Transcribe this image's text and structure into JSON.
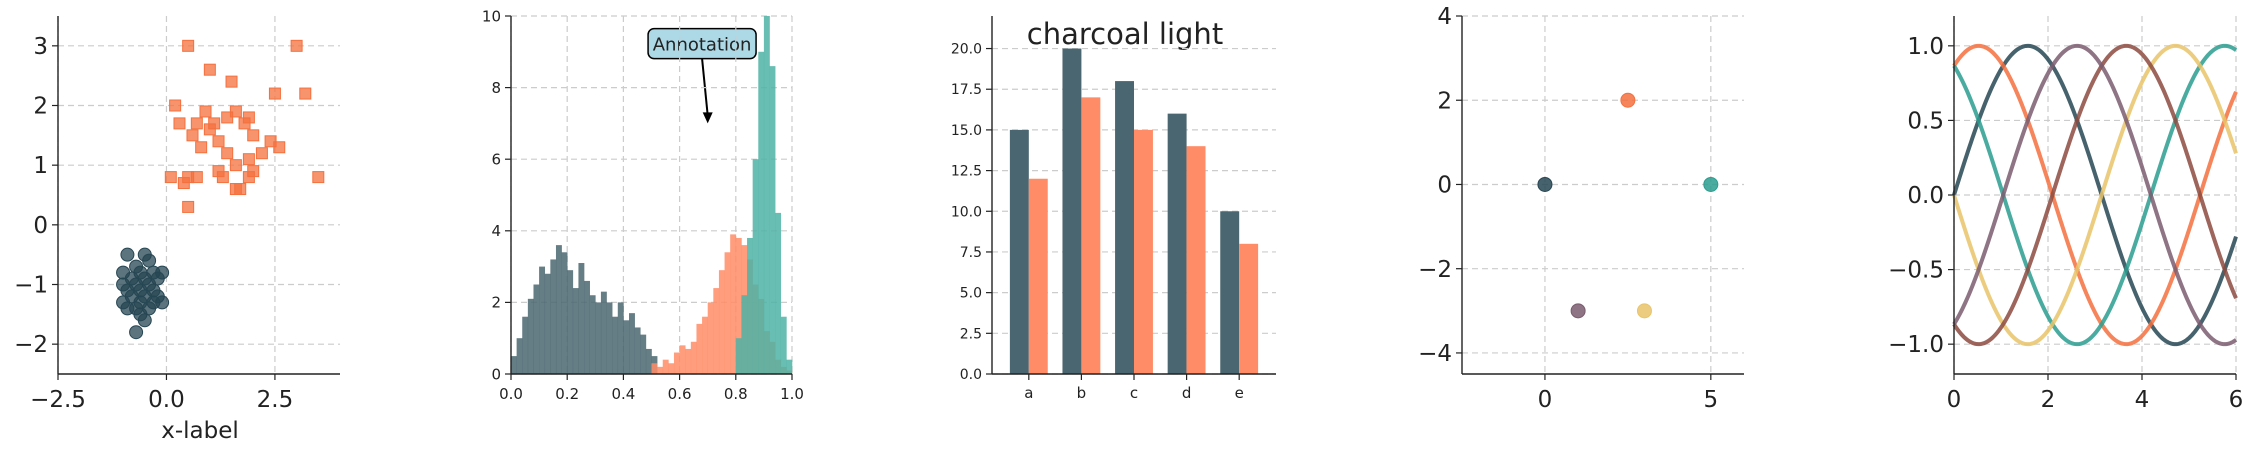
{
  "colors": {
    "charcoal": "#264653",
    "charcoal_mid": "#4a6670",
    "orange": "#f4703e",
    "orange_light": "#ff8c66",
    "teal": "#2a9d8f",
    "teal_light": "#4fb3a6",
    "sand": "#e9c46a",
    "brown": "#8c4a3e",
    "mauve": "#7a5c6e",
    "callout_fill": "#add8e6",
    "grid": "#cccccc"
  },
  "chart_data": [
    {
      "type": "scatter",
      "xlabel": "x-label",
      "ylabel": "",
      "xlim": [
        -2.5,
        4.0
      ],
      "ylim": [
        -2.5,
        3.5
      ],
      "xticks": [
        "−2.5",
        "0.0",
        "2.5"
      ],
      "xtick_values": [
        -2.5,
        0.0,
        2.5
      ],
      "yticks": [
        "−2",
        "−1",
        "0",
        "1",
        "2",
        "3"
      ],
      "ytick_values": [
        -2,
        -1,
        0,
        1,
        2,
        3
      ],
      "grid": true,
      "series": [
        {
          "marker": "square",
          "color": "orange",
          "points": [
            [
              0.5,
              3.0
            ],
            [
              3.0,
              3.0
            ],
            [
              1.0,
              2.6
            ],
            [
              1.5,
              2.4
            ],
            [
              0.2,
              2.0
            ],
            [
              0.9,
              1.9
            ],
            [
              1.6,
              1.9
            ],
            [
              1.9,
              1.8
            ],
            [
              1.4,
              1.8
            ],
            [
              2.5,
              2.2
            ],
            [
              3.2,
              2.2
            ],
            [
              0.7,
              1.7
            ],
            [
              1.0,
              1.6
            ],
            [
              1.8,
              1.7
            ],
            [
              2.0,
              1.5
            ],
            [
              0.6,
              1.5
            ],
            [
              1.2,
              1.4
            ],
            [
              0.3,
              1.7
            ],
            [
              2.4,
              1.4
            ],
            [
              1.4,
              1.2
            ],
            [
              0.8,
              1.3
            ],
            [
              1.9,
              1.1
            ],
            [
              2.6,
              1.3
            ],
            [
              1.6,
              1.0
            ],
            [
              1.2,
              0.9
            ],
            [
              0.4,
              0.7
            ],
            [
              0.5,
              0.8
            ],
            [
              2.0,
              0.9
            ],
            [
              1.6,
              0.6
            ],
            [
              1.7,
              0.6
            ],
            [
              0.5,
              0.3
            ],
            [
              3.5,
              0.8
            ],
            [
              1.9,
              0.8
            ],
            [
              0.7,
              0.8
            ],
            [
              1.1,
              1.7
            ],
            [
              2.2,
              1.2
            ],
            [
              1.3,
              0.8
            ],
            [
              0.1,
              0.8
            ]
          ]
        },
        {
          "marker": "circle",
          "color": "charcoal",
          "points": [
            [
              -0.9,
              -0.5
            ],
            [
              -0.5,
              -0.5
            ],
            [
              -0.7,
              -0.7
            ],
            [
              -0.4,
              -0.6
            ],
            [
              -1.0,
              -0.8
            ],
            [
              -0.6,
              -0.8
            ],
            [
              -0.3,
              -0.8
            ],
            [
              -0.1,
              -0.8
            ],
            [
              -0.8,
              -0.9
            ],
            [
              -0.5,
              -0.9
            ],
            [
              -0.2,
              -0.9
            ],
            [
              -1.0,
              -1.0
            ],
            [
              -0.7,
              -1.0
            ],
            [
              -0.4,
              -1.0
            ],
            [
              -0.9,
              -1.1
            ],
            [
              -0.6,
              -1.1
            ],
            [
              -0.3,
              -1.1
            ],
            [
              -0.8,
              -1.2
            ],
            [
              -0.5,
              -1.2
            ],
            [
              -0.2,
              -1.2
            ],
            [
              -1.0,
              -1.3
            ],
            [
              -0.6,
              -1.3
            ],
            [
              -0.3,
              -1.3
            ],
            [
              -0.1,
              -1.3
            ],
            [
              -0.9,
              -1.4
            ],
            [
              -0.7,
              -1.4
            ],
            [
              -0.4,
              -1.4
            ],
            [
              -0.6,
              -1.5
            ],
            [
              -0.5,
              -1.6
            ],
            [
              -0.7,
              -1.8
            ]
          ]
        }
      ]
    },
    {
      "type": "bar",
      "xlim": [
        0.0,
        1.0
      ],
      "ylim": [
        0,
        10
      ],
      "xticks": [
        "0.0",
        "0.2",
        "0.4",
        "0.6",
        "0.8",
        "1.0"
      ],
      "xtick_values": [
        0.0,
        0.2,
        0.4,
        0.6,
        0.8,
        1.0
      ],
      "yticks": [
        "0",
        "2",
        "4",
        "6",
        "8",
        "10"
      ],
      "ytick_values": [
        0,
        2,
        4,
        6,
        8,
        10
      ],
      "grid": true,
      "bin_width": 0.02,
      "annotation": {
        "text": "Annotation",
        "x": 0.7,
        "y": 7.0,
        "text_x": 0.68,
        "text_y": 9.2
      },
      "series": [
        {
          "color": "charcoal_mid",
          "bin_start": 0.0,
          "values": [
            0.5,
            1.0,
            1.6,
            2.1,
            2.5,
            3.0,
            2.8,
            3.2,
            3.6,
            3.4,
            2.9,
            2.4,
            3.1,
            2.6,
            2.2,
            2.0,
            2.3,
            2.0,
            1.6,
            2.0,
            1.5,
            1.7,
            1.3,
            1.1,
            0.7,
            0.5
          ]
        },
        {
          "color": "orange_light",
          "bin_start": 0.5,
          "values": [
            0.3,
            0.2,
            0.4,
            0.3,
            0.6,
            0.8,
            0.7,
            0.9,
            1.4,
            1.6,
            2.0,
            2.4,
            2.9,
            3.4,
            3.9,
            3.8,
            3.6,
            3.2,
            2.5,
            2.1,
            1.2,
            0.9,
            0.4,
            0.2,
            0.1
          ]
        },
        {
          "color": "teal_light",
          "bin_start": 0.8,
          "values": [
            1.0,
            2.2,
            3.8,
            6.0,
            9.0,
            10.0,
            8.6,
            4.5,
            1.6,
            0.4
          ]
        }
      ]
    },
    {
      "type": "bar",
      "title": "charcoal light",
      "categories": [
        "a",
        "b",
        "c",
        "d",
        "e"
      ],
      "ylim": [
        0,
        22
      ],
      "yticks": [
        "0.0",
        "2.5",
        "5.0",
        "7.5",
        "10.0",
        "12.5",
        "15.0",
        "17.5",
        "20.0"
      ],
      "ytick_values": [
        0,
        2.5,
        5,
        7.5,
        10,
        12.5,
        15,
        17.5,
        20
      ],
      "grid": true,
      "series": [
        {
          "color": "charcoal_mid",
          "values": [
            15,
            20,
            18,
            16,
            10
          ]
        },
        {
          "color": "orange_light",
          "values": [
            12,
            17,
            15,
            14,
            8
          ]
        }
      ]
    },
    {
      "type": "scatter",
      "xlim": [
        -2.5,
        6.0
      ],
      "ylim": [
        -4.5,
        4.0
      ],
      "xticks": [
        "0",
        "5"
      ],
      "xtick_values": [
        0,
        5
      ],
      "yticks": [
        "−4",
        "−2",
        "0",
        "2",
        "4"
      ],
      "ytick_values": [
        -4,
        -2,
        0,
        2,
        4
      ],
      "grid": true,
      "points": [
        {
          "x": 0,
          "y": 0,
          "color": "charcoal"
        },
        {
          "x": 2.5,
          "y": 2,
          "color": "orange"
        },
        {
          "x": 5,
          "y": 0,
          "color": "teal"
        },
        {
          "x": 1,
          "y": -3,
          "color": "mauve"
        },
        {
          "x": 3,
          "y": -3,
          "color": "sand"
        }
      ]
    },
    {
      "type": "line",
      "xlim": [
        0,
        6
      ],
      "ylim": [
        -1.2,
        1.2
      ],
      "xticks": [
        "0",
        "2",
        "4",
        "6"
      ],
      "xtick_values": [
        0,
        2,
        4,
        6
      ],
      "yticks": [
        "−1.0",
        "−0.5",
        "0.0",
        "0.5",
        "1.0"
      ],
      "ytick_values": [
        -1.0,
        -0.5,
        0.0,
        0.5,
        1.0
      ],
      "grid": true,
      "series": [
        {
          "color": "charcoal",
          "function": "sin",
          "phase": 0.0
        },
        {
          "color": "orange",
          "function": "sin",
          "phase": 1.047
        },
        {
          "color": "teal",
          "function": "sin",
          "phase": 2.094
        },
        {
          "color": "sand",
          "function": "sin",
          "phase": 3.142
        },
        {
          "color": "brown",
          "function": "sin",
          "phase": 4.189
        },
        {
          "color": "mauve",
          "function": "sin",
          "phase": 5.236
        }
      ]
    }
  ]
}
